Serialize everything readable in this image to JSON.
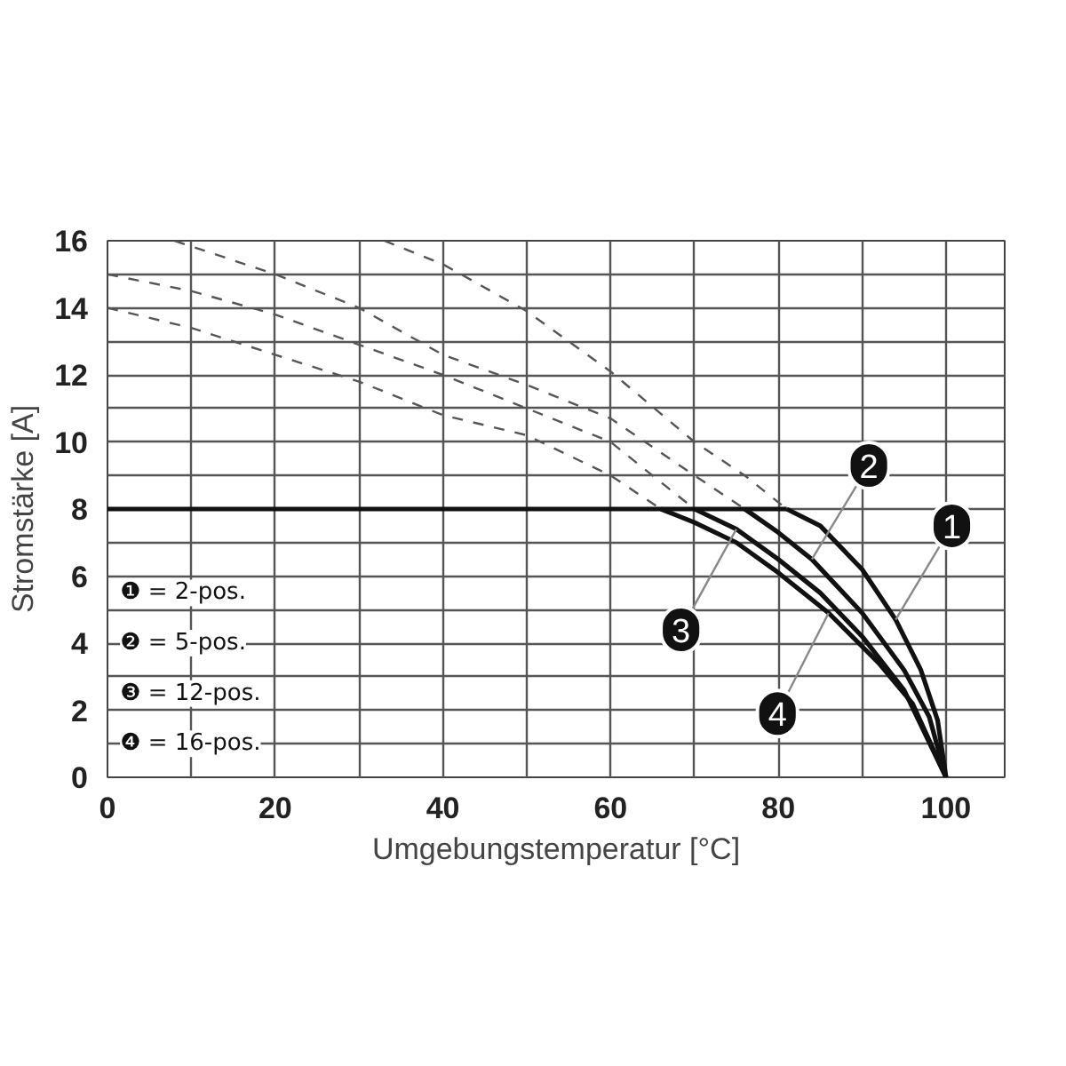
{
  "chart_data": {
    "type": "line",
    "xlabel": "Umgebungstemperatur [°C]",
    "ylabel": "Stromstärke [A]",
    "xlim": [
      0,
      107
    ],
    "ylim": [
      0,
      16
    ],
    "xticks": [
      0,
      {
        "value": 10,
        "label": null
      },
      20,
      {
        "value": 30,
        "label": null
      },
      40,
      {
        "value": 50,
        "label": null
      },
      60,
      {
        "value": 70,
        "label": null
      },
      80,
      {
        "value": 90,
        "label": null
      },
      100
    ],
    "yticks": [
      0,
      {
        "value": 1,
        "label": null
      },
      2,
      {
        "value": 3,
        "label": null
      },
      4,
      {
        "value": 5,
        "label": null
      },
      6,
      {
        "value": 7,
        "label": null
      },
      8,
      {
        "value": 9,
        "label": null
      },
      10,
      {
        "value": 11,
        "label": null
      },
      12,
      {
        "value": 13,
        "label": null
      },
      14,
      {
        "value": 15,
        "label": null
      },
      16
    ],
    "grid": true,
    "series": [
      {
        "color": "#111111",
        "line_style": "solid",
        "x": [
          0,
          81
        ],
        "values": [
          8,
          8
        ]
      },
      {
        "color": "#111111",
        "line_style": "solid",
        "x": [
          81,
          85,
          90,
          94,
          97,
          99,
          100
        ],
        "values": [
          8,
          7.5,
          6.2,
          4.7,
          3.2,
          1.7,
          0
        ]
      },
      {
        "color": "#111111",
        "line_style": "solid",
        "x": [
          76,
          80,
          84,
          90,
          95,
          98,
          100
        ],
        "values": [
          8,
          7.3,
          6.5,
          4.9,
          3.2,
          1.8,
          0
        ]
      },
      {
        "color": "#111111",
        "line_style": "solid",
        "x": [
          70,
          75,
          80,
          85,
          90,
          95,
          100
        ],
        "values": [
          8,
          7.4,
          6.5,
          5.5,
          4.2,
          2.6,
          0
        ]
      },
      {
        "color": "#111111",
        "line_style": "solid",
        "x": [
          66,
          70,
          75,
          80,
          86,
          92,
          96,
          100
        ],
        "values": [
          8,
          7.6,
          7,
          6.1,
          4.9,
          3.4,
          2.2,
          0
        ]
      },
      {
        "color": "#555555",
        "line_style": "dashed",
        "x": [
          33,
          40,
          50,
          60,
          70,
          76,
          81
        ],
        "values": [
          16,
          15.3,
          13.9,
          12.1,
          10,
          9,
          8
        ]
      },
      {
        "color": "#555555",
        "line_style": "dashed",
        "x": [
          8,
          20,
          30,
          40,
          50,
          60,
          70,
          76
        ],
        "values": [
          16,
          15,
          14,
          12.6,
          11.7,
          10.7,
          9,
          8
        ]
      },
      {
        "color": "#555555",
        "line_style": "dashed",
        "x": [
          0,
          10,
          20,
          30,
          40,
          50,
          60,
          70
        ],
        "values": [
          15,
          14.5,
          13.8,
          12.9,
          12,
          11,
          10,
          8
        ]
      },
      {
        "color": "#555555",
        "line_style": "dashed",
        "x": [
          0,
          10,
          20,
          30,
          40,
          50,
          60,
          66
        ],
        "values": [
          14,
          13.4,
          12.6,
          11.8,
          10.8,
          10.2,
          9,
          8
        ]
      }
    ],
    "annotations": [
      "❶ = 2-pos.",
      "❷ = 5-pos.",
      "❸ = 12-pos.",
      "❹ = 16-pos.",
      {
        "text": "1",
        "x": 94,
        "y": 4.7
      },
      {
        "text": "2",
        "x": 84,
        "y": 6.5
      },
      {
        "text": "3",
        "x": 75,
        "y": 7.4
      },
      {
        "text": "4",
        "x": 86,
        "y": 4.9
      }
    ]
  }
}
